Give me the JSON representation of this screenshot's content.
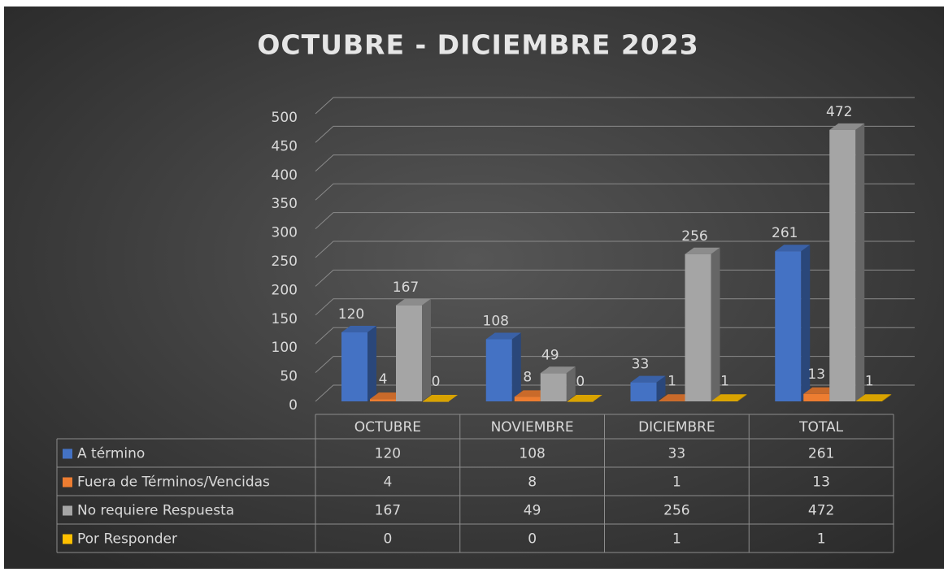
{
  "chart_data": {
    "type": "bar3d",
    "title": "OCTUBRE - DICIEMBRE 2023",
    "categories": [
      "OCTUBRE",
      "NOVIEMBRE",
      "DICIEMBRE",
      "TOTAL"
    ],
    "series": [
      {
        "name": "A término",
        "color": "#4472c4",
        "values": [
          120,
          108,
          33,
          261
        ]
      },
      {
        "name": "Fuera de Términos/Vencidas",
        "color": "#ed7d31",
        "values": [
          4,
          8,
          1,
          13
        ]
      },
      {
        "name": "No requiere Respuesta",
        "color": "#a5a5a5",
        "values": [
          167,
          49,
          256,
          472
        ]
      },
      {
        "name": "Por Responder",
        "color": "#ffc000",
        "values": [
          0,
          0,
          1,
          1
        ]
      }
    ],
    "ylim": [
      0,
      500
    ],
    "yticks": [
      0,
      50,
      100,
      150,
      200,
      250,
      300,
      350,
      400,
      450,
      500
    ],
    "grid": true,
    "data_table": true
  }
}
